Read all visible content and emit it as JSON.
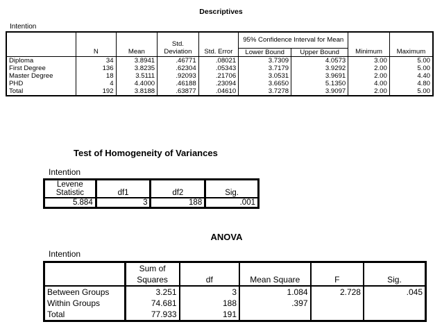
{
  "descriptives": {
    "title": "Descriptives",
    "variable": "Intention",
    "ci_header": "95% Confidence Interval for Mean",
    "columns": [
      "N",
      "Mean",
      "Std. Deviation",
      "Std. Error",
      "Lower Bound",
      "Upper Bound",
      "Minimum",
      "Maximum"
    ],
    "std_dev_top": "Std.",
    "std_dev_bottom": "Deviation",
    "rows": [
      {
        "label": "Diploma",
        "cells": [
          "34",
          "3.8941",
          ".46771",
          ".08021",
          "3.7309",
          "4.0573",
          "3.00",
          "5.00"
        ]
      },
      {
        "label": "First Degree",
        "cells": [
          "136",
          "3.8235",
          ".62304",
          ".05343",
          "3.7179",
          "3.9292",
          "2.00",
          "5.00"
        ]
      },
      {
        "label": "Master Degree",
        "cells": [
          "18",
          "3.5111",
          ".92093",
          ".21706",
          "3.0531",
          "3.9691",
          "2.00",
          "4.40"
        ]
      },
      {
        "label": "PHD",
        "cells": [
          "4",
          "4.4000",
          ".46188",
          ".23094",
          "3.6650",
          "5.1350",
          "4.00",
          "4.80"
        ]
      },
      {
        "label": "Total",
        "cells": [
          "192",
          "3.8188",
          ".63877",
          ".04610",
          "3.7278",
          "3.9097",
          "2.00",
          "5.00"
        ]
      }
    ]
  },
  "homogeneity": {
    "title": "Test of Homogeneity of Variances",
    "variable": "Intention",
    "levene_top": "Levene",
    "levene_bottom": "Statistic",
    "df1": "df1",
    "df2": "df2",
    "sig": "Sig.",
    "values": [
      "5.884",
      "3",
      "188",
      ".001"
    ]
  },
  "anova": {
    "title": "ANOVA",
    "variable": "Intention",
    "ss_top": "Sum of",
    "ss_bottom": "Squares",
    "df": "df",
    "ms": "Mean Square",
    "f": "F",
    "sig": "Sig.",
    "rows": [
      {
        "label": "Between Groups",
        "cells": [
          "3.251",
          "3",
          "1.084",
          "2.728",
          ".045"
        ]
      },
      {
        "label": "Within Groups",
        "cells": [
          "74.681",
          "188",
          ".397",
          "",
          ""
        ]
      },
      {
        "label": "Total",
        "cells": [
          "77.933",
          "191",
          "",
          "",
          ""
        ]
      }
    ]
  }
}
